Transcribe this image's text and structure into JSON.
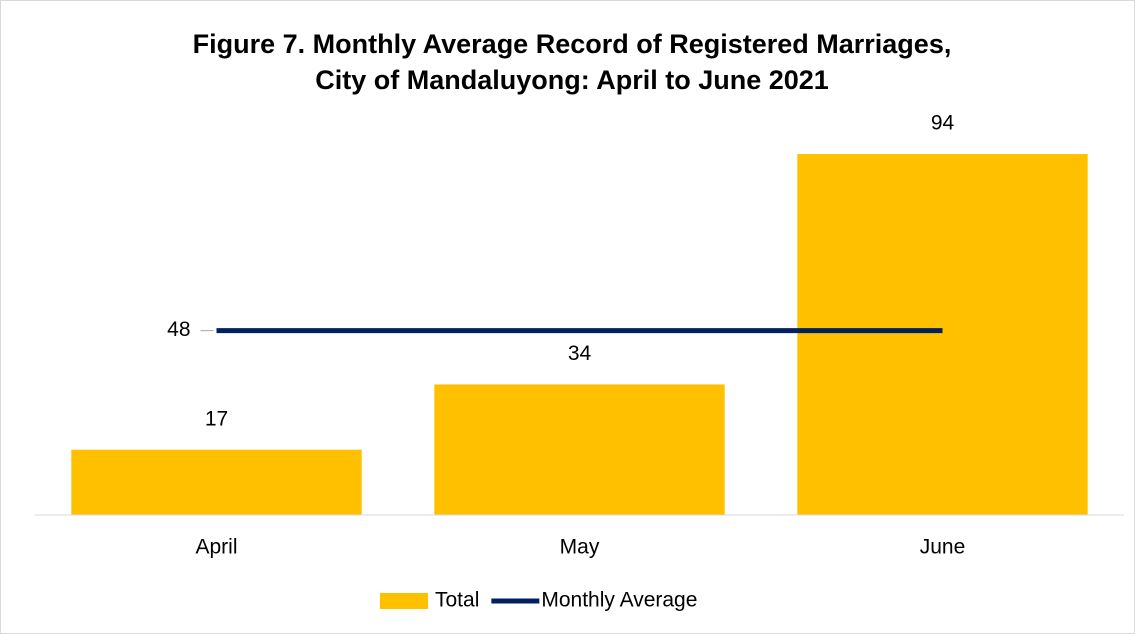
{
  "chart_data": {
    "type": "bar_line",
    "title": [
      "Figure 7. Monthly Average Record of Registered Marriages,",
      "City of Mandaluyong: April to June 2021"
    ],
    "categories": [
      "April",
      "May",
      "June"
    ],
    "series": [
      {
        "name": "Total",
        "type": "bar",
        "color": "#ffc000",
        "values": [
          17,
          34,
          94
        ]
      },
      {
        "name": "Monthly Average",
        "type": "line",
        "color": "#002060",
        "values": [
          48,
          48,
          48
        ]
      }
    ],
    "ylim": [
      0,
      100
    ],
    "legend": "bottom"
  }
}
